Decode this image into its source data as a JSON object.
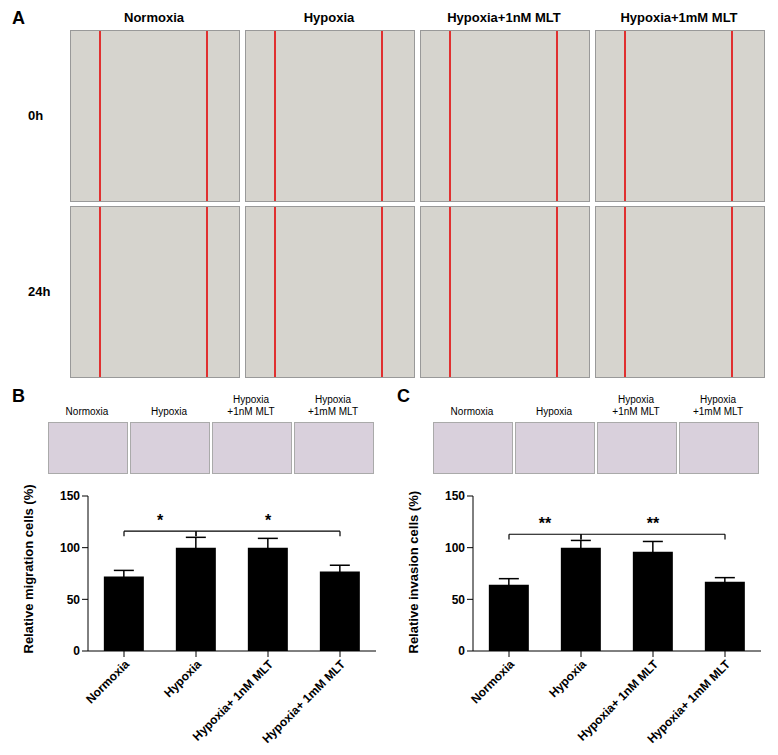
{
  "panel_a": {
    "panel_label": "A",
    "columns": [
      "Normoxia",
      "Hypoxia",
      "Hypoxia+1nM MLT",
      "Hypoxia+1mM MLT"
    ],
    "rows": [
      "0h",
      "24h"
    ]
  },
  "chart_data": [
    {
      "type": "bar",
      "panel_label": "B",
      "image_labels": [
        "Normoxia",
        "Hypoxia",
        "+1nM MLT",
        "+1mM MLT"
      ],
      "image_label_prefix": [
        null,
        null,
        "Hypoxia",
        "Hypoxia"
      ],
      "categories": [
        "Normoxia",
        "Hypoxia",
        "Hypoxia+ 1nM MLT",
        "Hypoxia+ 1mM MLT"
      ],
      "values": [
        72,
        100,
        100,
        77
      ],
      "errors": [
        6,
        10,
        9,
        6
      ],
      "color": "#000000",
      "y_label": "Relative migration cells (%)",
      "ylim": [
        0,
        150
      ],
      "yticks": [
        0,
        50,
        100,
        150
      ],
      "grid": false,
      "annotations": [
        {
          "from": "Normoxia",
          "to": "Hypoxia",
          "label": "*"
        },
        {
          "from": "Hypoxia",
          "to": "Hypoxia+ 1mM MLT",
          "label": "*"
        }
      ]
    },
    {
      "type": "bar",
      "panel_label": "C",
      "image_labels": [
        "Normoxia",
        "Hypoxia",
        "+1nM MLT",
        "+1mM MLT"
      ],
      "image_label_prefix": [
        null,
        null,
        "Hypoxia",
        "Hypoxia"
      ],
      "categories": [
        "Normoxia",
        "Hypoxia",
        "Hypoxia+ 1nM MLT",
        "Hypoxia+ 1mM MLT"
      ],
      "values": [
        64,
        100,
        96,
        67
      ],
      "errors": [
        6,
        7,
        10,
        4
      ],
      "color": "#000000",
      "y_label": "Relative invasion cells (%)",
      "ylim": [
        0,
        150
      ],
      "yticks": [
        0,
        50,
        100,
        150
      ],
      "grid": false,
      "annotations": [
        {
          "from": "Normoxia",
          "to": "Hypoxia",
          "label": "**"
        },
        {
          "from": "Hypoxia",
          "to": "Hypoxia+ 1mM MLT",
          "label": "**"
        }
      ]
    }
  ]
}
